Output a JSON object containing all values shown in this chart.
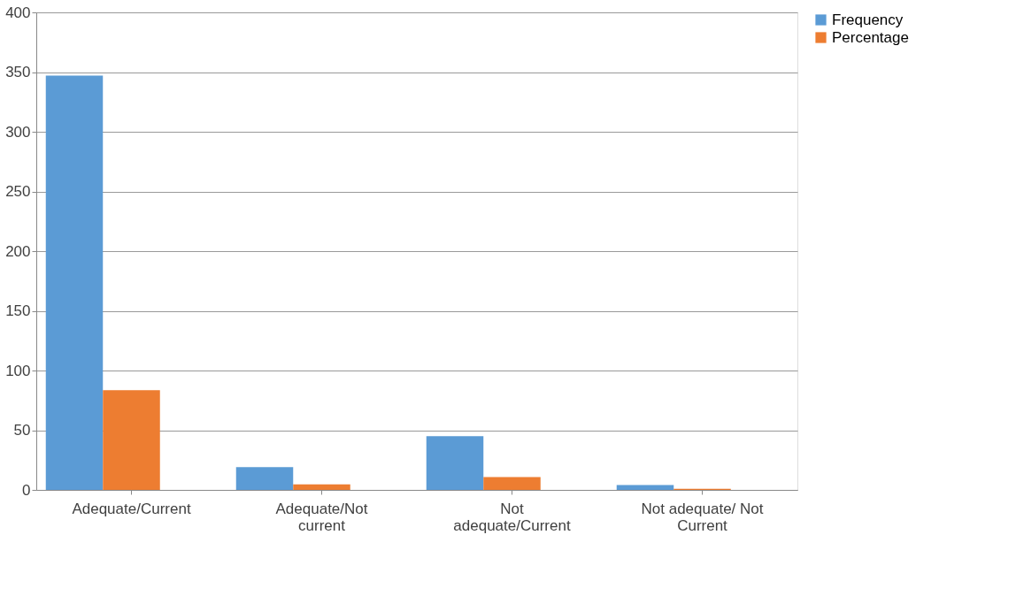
{
  "chart_data": {
    "type": "bar",
    "categories": [
      "Adequate/Current",
      "Adequate/Not current",
      "Not adequate/Current",
      "Not adequate/ Not Current"
    ],
    "series": [
      {
        "name": "Frequency",
        "color": "#5b9bd5",
        "values": [
          347,
          19,
          45,
          4
        ]
      },
      {
        "name": "Percentage",
        "color": "#ed7d31",
        "values": [
          83.6,
          4.6,
          10.8,
          1.0
        ]
      }
    ],
    "ylim": [
      0,
      400
    ],
    "yticks": [
      0,
      50,
      100,
      150,
      200,
      250,
      300,
      350,
      400
    ],
    "grid": "y",
    "legend": "right"
  }
}
